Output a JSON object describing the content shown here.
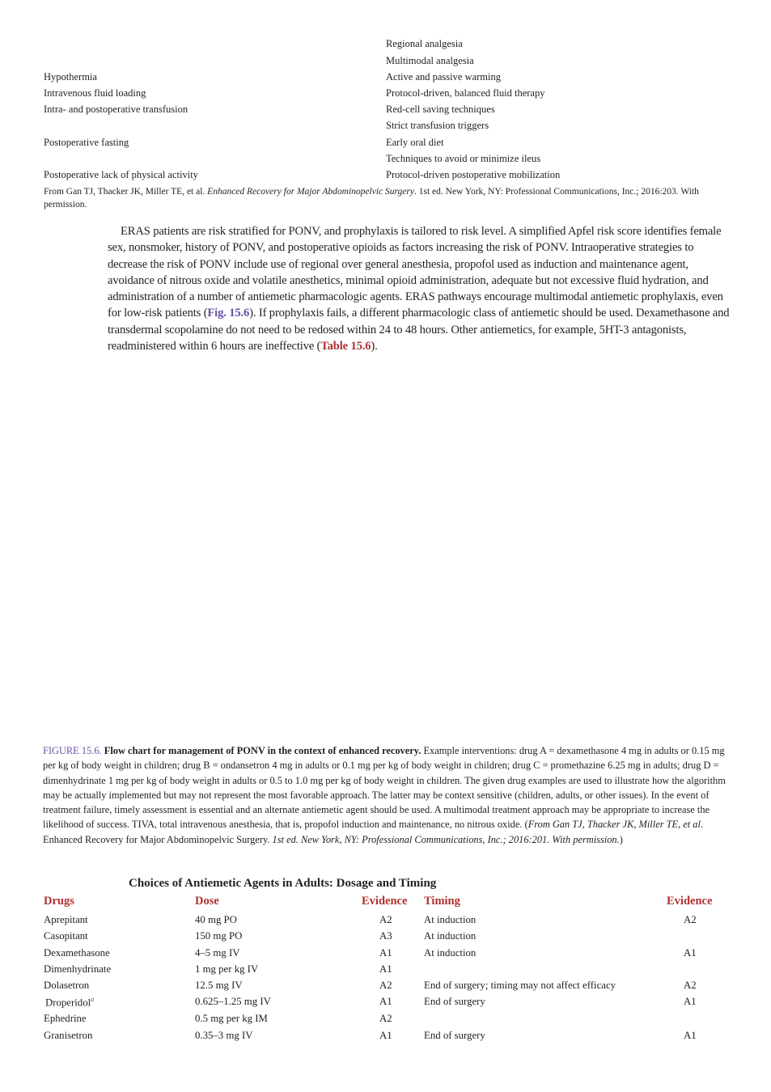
{
  "top_table": {
    "rows": [
      {
        "left": "",
        "right": "Regional analgesia"
      },
      {
        "left": "",
        "right": "Multimodal analgesia"
      },
      {
        "left": "Hypothermia",
        "right": "Active and passive warming"
      },
      {
        "left": "Intravenous fluid loading",
        "right": "Protocol-driven, balanced fluid therapy"
      },
      {
        "left": "Intra- and postoperative transfusion",
        "right": "Red-cell saving techniques"
      },
      {
        "left": "",
        "right": "Strict transfusion triggers"
      },
      {
        "left": "Postoperative fasting",
        "right": "Early oral diet"
      },
      {
        "left": "",
        "right": "Techniques to avoid or minimize ileus"
      },
      {
        "left": "Postoperative lack of physical activity",
        "right": "Protocol-driven postoperative mobilization"
      }
    ],
    "source_prefix": "From Gan TJ, Thacker JK, Miller TE, et al. ",
    "source_title": "Enhanced Recovery for Major Abdominopelvic Surgery",
    "source_suffix": ". 1st ed. New York, NY: Professional Communications, Inc.; 2016:203. With permission."
  },
  "paragraph": {
    "part1": "ERAS patients are risk stratified for PONV, and prophylaxis is tailored to risk level. A simplified Apfel risk score identifies female sex, nonsmoker, history of PONV, and postoperative opioids as factors increasing the risk of PONV. Intraoperative strategies to decrease the risk of PONV include use of regional over general anesthesia, propofol used as induction and maintenance agent, avoidance of nitrous oxide and volatile anesthetics, minimal opioid administration, adequate but not excessive fluid hydration, and administration of a number of antiemetic pharmacologic agents. ERAS pathways encourage multimodal antiemetic prophylaxis, even for low-risk patients (",
    "fig_ref": "Fig. 15.6",
    "part2": "). If prophylaxis fails, a different pharmacologic class of antiemetic should be used. Dexamethasone and transdermal scopolamine do not need to be redosed within 24 to 48 hours. Other antiemetics, for example, 5HT-3 antagonists, readministered within 6 hours are ineffective (",
    "table_ref": "Table 15.6",
    "part3": ")."
  },
  "figure_caption": {
    "label": "FIGURE 15.6.",
    "title": "Flow chart for management of PONV in the context of enhanced recovery.",
    "body": " Example interventions: drug A = dexamethasone 4 mg in adults or 0.15 mg per kg of body weight in children; drug B = ondansetron 4 mg in adults or 0.1 mg per kg of body weight in children; drug C = promethazine 6.25 mg in adults; drug D = dimenhydrinate 1 mg per kg of body weight in adults or 0.5 to 1.0 mg per kg of body weight in children. The given drug examples are used to illustrate how the algorithm may be actually implemented but may not represent the most favorable approach. The latter may be context sensitive (children, adults, or other issues). In the event of treatment failure, timely assessment is essential and an alternate antiemetic agent should be used. A multimodal treatment approach may be appropriate to increase the likelihood of success. TIVA, total intravenous anesthesia, that is, propofol induction and maintenance, no nitrous oxide. (",
    "italic1": "From Gan TJ, Thacker JK, Miller TE, et al",
    "mid": ". Enhanced Recovery for Major Abdominopelvic Surgery. ",
    "italic2": "1st ed. New York, NY: Professional Communications, Inc.; 2016:201. With permission.",
    "end": ")"
  },
  "antiemetic_table": {
    "title": "Choices of Antiemetic Agents in Adults: Dosage and Timing",
    "headers": {
      "drugs": "Drugs",
      "dose": "Dose",
      "evidence1": "Evidence",
      "timing": "Timing",
      "evidence2": "Evidence"
    },
    "footnote_marker": "a",
    "rows": [
      {
        "drug": "Aprepitant",
        "dose": "40 mg PO",
        "ev1": "A2",
        "timing": "At induction",
        "ev2": "A2"
      },
      {
        "drug": "Casopitant",
        "dose": "150 mg PO",
        "ev1": "A3",
        "timing": "At induction",
        "ev2": ""
      },
      {
        "drug": "Dexamethasone",
        "dose": "4–5 mg IV",
        "ev1": "A1",
        "timing": "At induction",
        "ev2": "A1"
      },
      {
        "drug": "Dimenhydrinate",
        "dose": "1 mg per kg IV",
        "ev1": "A1",
        "timing": "",
        "ev2": ""
      },
      {
        "drug": "Dolasetron",
        "dose": "12.5 mg IV",
        "ev1": "A2",
        "timing": "End of surgery; timing may not affect efficacy",
        "ev2": "A2"
      },
      {
        "drug": "Droperidol",
        "dose": "0.625–1.25 mg IV",
        "ev1": "A1",
        "timing": "End of surgery",
        "ev2": "A1"
      },
      {
        "drug": "Ephedrine",
        "dose": "0.5 mg per kg IM",
        "ev1": "A2",
        "timing": "",
        "ev2": ""
      },
      {
        "drug": "Granisetron",
        "dose": "0.35–3 mg IV",
        "ev1": "A1",
        "timing": "End of surgery",
        "ev2": "A1"
      }
    ]
  }
}
